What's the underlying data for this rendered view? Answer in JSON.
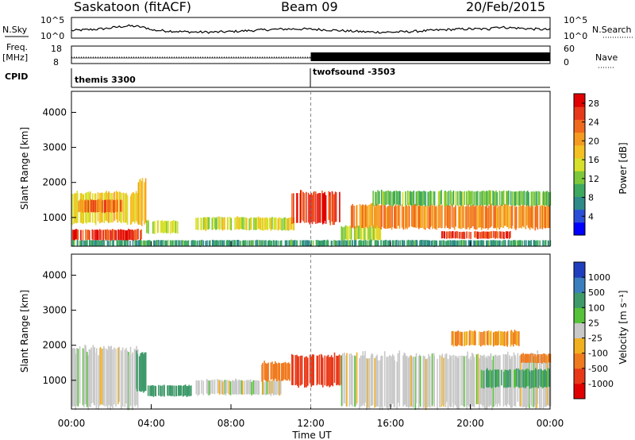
{
  "header": {
    "station": "Saskatoon (fitACF)",
    "beam": "Beam 09",
    "date": "20/Feb/2015"
  },
  "status_panels": {
    "left_labels": [
      "N.Sky",
      "Freq.",
      "[MHz]",
      "CPID"
    ],
    "right_labels": [
      "N.Search",
      "Nave"
    ],
    "nsky_ticks": [
      "10^5",
      "10^0"
    ],
    "freq_ticks": [
      "18",
      "8"
    ],
    "nave_ticks": [
      "60",
      "0"
    ],
    "cpid_segments": [
      {
        "label": "themis 3300",
        "start_hour": 0
      },
      {
        "label": "twofsound -3503",
        "start_hour": 12
      }
    ]
  },
  "chart_data": [
    {
      "type": "heatmap",
      "name": "power",
      "ylabel": "Slant Range [km]",
      "xlabel": "Time UT",
      "x_ticks": [
        "00:00",
        "04:00",
        "08:00",
        "12:00",
        "16:00",
        "20:00",
        "00:00"
      ],
      "x_range_hours": [
        0,
        24
      ],
      "y_ticks": [
        "1000",
        "2000",
        "3000",
        "4000"
      ],
      "ylim": [
        180,
        4600
      ],
      "colorbar": {
        "label": "Power [dB]",
        "ticks": [
          "4",
          "8",
          "12",
          "16",
          "20",
          "24",
          "28"
        ],
        "range": [
          0,
          30
        ],
        "colors": [
          "#0000ff",
          "#2a4fd6",
          "#2f8a8a",
          "#3da860",
          "#7cc83a",
          "#d7e02a",
          "#f5c021",
          "#f59a20",
          "#f06a1e",
          "#e8381c",
          "#e00000"
        ]
      },
      "features": [
        {
          "t0": 0.0,
          "t1": 3.5,
          "r0": 350,
          "r1": 650,
          "level": 27
        },
        {
          "t0": 0.0,
          "t1": 3.3,
          "r0": 850,
          "r1": 1700,
          "level": 17
        },
        {
          "t0": 0.3,
          "t1": 2.6,
          "r0": 1150,
          "r1": 1500,
          "level": 24
        },
        {
          "t0": 3.3,
          "t1": 3.7,
          "r0": 800,
          "r1": 2100,
          "level": 19
        },
        {
          "t0": 3.7,
          "t1": 5.3,
          "r0": 550,
          "r1": 900,
          "level": 14
        },
        {
          "t0": 6.2,
          "t1": 11.2,
          "r0": 650,
          "r1": 1000,
          "level": 15
        },
        {
          "t0": 11.0,
          "t1": 13.5,
          "r0": 850,
          "r1": 1700,
          "level": 27
        },
        {
          "t0": 13.5,
          "t1": 15.5,
          "r0": 350,
          "r1": 750,
          "level": 14
        },
        {
          "t0": 14.0,
          "t1": 24.0,
          "r0": 700,
          "r1": 1350,
          "level": 22
        },
        {
          "t0": 15.0,
          "t1": 24.0,
          "r0": 1350,
          "r1": 1750,
          "level": 11
        },
        {
          "t0": 18.5,
          "t1": 22.0,
          "r0": 400,
          "r1": 600,
          "level": 27
        },
        {
          "t0": 0.0,
          "t1": 24.0,
          "r0": 180,
          "r1": 350,
          "level": 8
        }
      ]
    },
    {
      "type": "heatmap",
      "name": "velocity",
      "ylabel": "Slant Range [km]",
      "xlabel": "Time UT",
      "x_ticks": [
        "00:00",
        "04:00",
        "08:00",
        "12:00",
        "16:00",
        "20:00",
        "00:00"
      ],
      "x_range_hours": [
        0,
        24
      ],
      "y_ticks": [
        "1000",
        "2000",
        "3000",
        "4000"
      ],
      "ylim": [
        180,
        4600
      ],
      "colorbar": {
        "label": "Velocity [m s⁻¹]",
        "ticks": [
          "1000",
          "500",
          "100",
          "25",
          "-25",
          "-100",
          "-500",
          "-1000"
        ],
        "colors": [
          "#1f3fbf",
          "#3b7fbf",
          "#3f9a6a",
          "#56c23a",
          "#c8c8c8",
          "#f0b020",
          "#f07a1e",
          "#e83818",
          "#e00000"
        ]
      },
      "features": [
        {
          "t0": 0.0,
          "t1": 3.3,
          "r0": 250,
          "r1": 1900,
          "vel": 0
        },
        {
          "t0": 3.2,
          "t1": 3.8,
          "r0": 700,
          "r1": 1800,
          "vel": 200
        },
        {
          "t0": 3.8,
          "t1": 6.0,
          "r0": 550,
          "r1": 850,
          "vel": 200
        },
        {
          "t0": 6.2,
          "t1": 10.5,
          "r0": 600,
          "r1": 1000,
          "vel": 0
        },
        {
          "t0": 9.5,
          "t1": 11.0,
          "r0": 1000,
          "r1": 1500,
          "vel": -300
        },
        {
          "t0": 11.0,
          "t1": 13.5,
          "r0": 850,
          "r1": 1700,
          "vel": -700
        },
        {
          "t0": 13.5,
          "t1": 24.0,
          "r0": 250,
          "r1": 1700,
          "vel": 0
        },
        {
          "t0": 19.0,
          "t1": 22.5,
          "r0": 2000,
          "r1": 2400,
          "vel": -100
        },
        {
          "t0": 22.5,
          "t1": 24.0,
          "r0": 1500,
          "r1": 1750,
          "vel": -300
        },
        {
          "t0": 20.5,
          "t1": 24.0,
          "r0": 800,
          "r1": 1300,
          "vel": 120
        }
      ]
    }
  ]
}
